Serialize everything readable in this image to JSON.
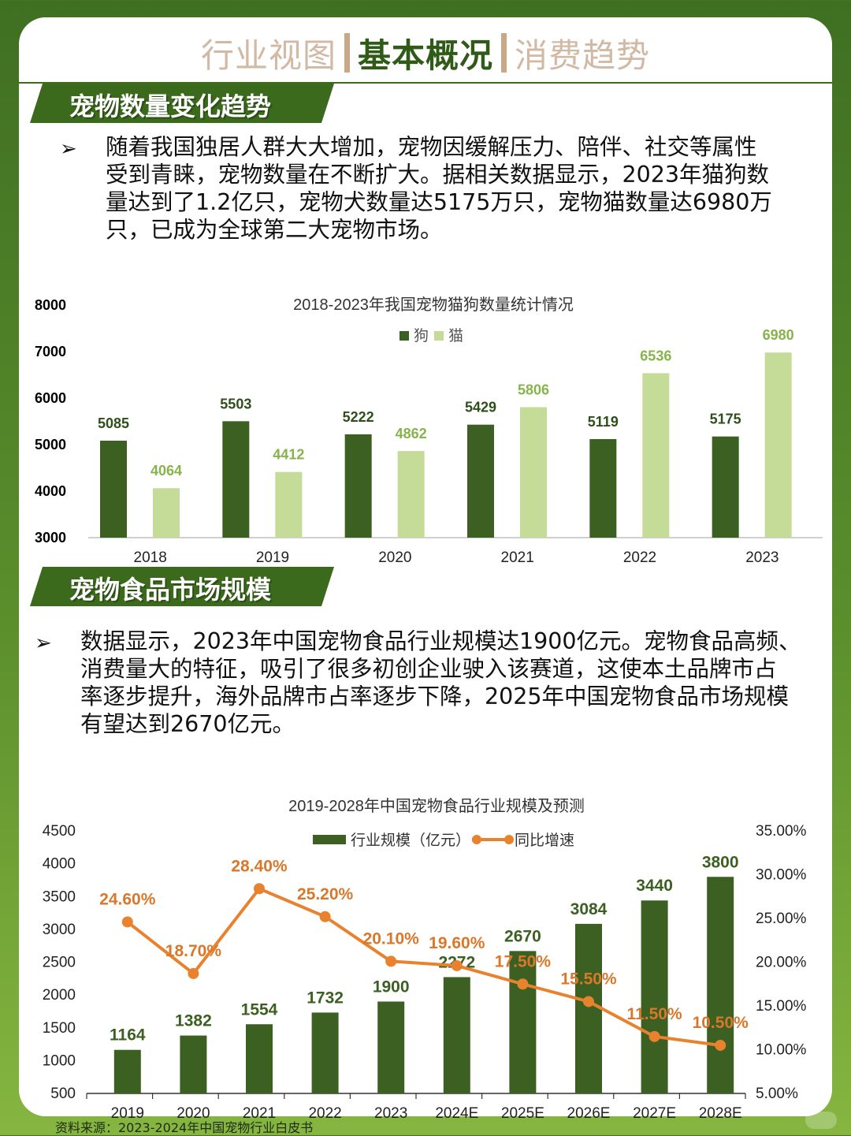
{
  "header": {
    "tabs": [
      "行业视图",
      "基本概况",
      "消费趋势"
    ],
    "active_tab": 1
  },
  "section1": {
    "title": "宠物数量变化趋势",
    "bullet": "➢",
    "lines": [
      "随着我国独居人群大大增加，宠物因缓解压力、陪伴、社交等属性",
      "受到青睐，宠物数量在不断扩大。据相关数据显示，2023年猫狗数",
      "量达到了1.2亿只，宠物犬数量达5175万只，宠物猫数量达6980万",
      "只，已成为全球第二大宠物市场。"
    ]
  },
  "section2": {
    "title": "宠物食品市场规模",
    "bullet": "➢",
    "lines": [
      "数据显示，2023年中国宠物食品行业规模达1900亿元。宠物食品高频、",
      "消费量大的特征，吸引了很多初创企业驶入该赛道，这使本土品牌市占",
      "率逐步提升，海外品牌市占率逐步下降，2025年中国宠物食品市场规模",
      "有望达到2670亿元。"
    ]
  },
  "chart_data": [
    {
      "type": "bar",
      "title": "2018-2023年我国宠物猫狗数量统计情况",
      "categories": [
        "2018",
        "2019",
        "2020",
        "2021",
        "2022",
        "2023"
      ],
      "series": [
        {
          "name": "狗",
          "values": [
            5085,
            5503,
            5222,
            5429,
            5119,
            5175
          ],
          "color": "#3b6021"
        },
        {
          "name": "猫",
          "values": [
            4064,
            4412,
            4862,
            5806,
            6536,
            6980
          ],
          "color": "#c5dc98"
        }
      ],
      "yticks": [
        "8000",
        "7000",
        "6000",
        "5000",
        "4000",
        "3000"
      ],
      "ylim": [
        3000,
        8000
      ],
      "legend": "top-center",
      "grid": false
    },
    {
      "type": "bar+line",
      "title": "2019-2028年中国宠物食品行业规模及预测",
      "categories": [
        "2019",
        "2020",
        "2021",
        "2022",
        "2023",
        "2024E",
        "2025E",
        "2026E",
        "2027E",
        "2028E"
      ],
      "series": [
        {
          "name": "行业规模（亿元）",
          "values": [
            1164,
            1382,
            1554,
            1732,
            1900,
            2272,
            2670,
            3084,
            3440,
            3800
          ],
          "color": "#3b6021",
          "axis": "left"
        },
        {
          "name": "同比增速",
          "values": [
            24.6,
            18.7,
            28.4,
            25.2,
            20.1,
            19.6,
            17.5,
            15.5,
            11.5,
            10.5
          ],
          "labels": [
            "24.60%",
            "18.70%",
            "28.40%",
            "25.20%",
            "20.10%",
            "19.60%",
            "17.50%",
            "15.50%",
            "11.50%",
            "10.50%"
          ],
          "color": "#e8822e",
          "axis": "right"
        }
      ],
      "ylim_left": [
        500,
        4500
      ],
      "yticks_left": [
        "4500",
        "4000",
        "3500",
        "3000",
        "2500",
        "2000",
        "1500",
        "1000",
        "500"
      ],
      "ylim_right": [
        5,
        35
      ],
      "yticks_right": [
        "35.00%",
        "30.00%",
        "25.00%",
        "20.00%",
        "15.00%",
        "10.00%",
        "5.00%"
      ],
      "legend": "top-center",
      "grid": false
    }
  ],
  "source": "资料来源：2023-2024年中国宠物行业白皮书"
}
